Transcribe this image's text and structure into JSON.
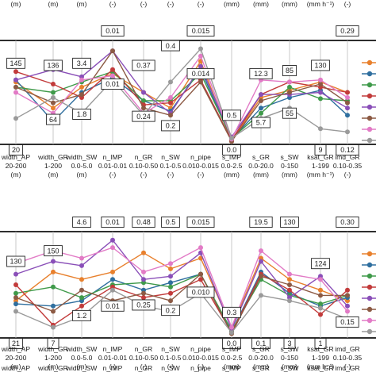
{
  "chart_data": [
    {
      "type": "line",
      "subtype": "parallel-coordinates",
      "title": "",
      "axes": [
        {
          "name": "width_AP",
          "range": "20-200",
          "unit": "(m)"
        },
        {
          "name": "width_GR",
          "range": "1-200",
          "unit": "(m)"
        },
        {
          "name": "width_SW",
          "range": "0.0-5.0",
          "unit": "(m)"
        },
        {
          "name": "n_IMP",
          "range": "0.01-0.01",
          "unit": "(-)"
        },
        {
          "name": "n_GR",
          "range": "0.10-0.50",
          "unit": "(-)"
        },
        {
          "name": "n_SW",
          "range": "0.1-0.5",
          "unit": "(-)"
        },
        {
          "name": "n_pipe",
          "range": "0.010-0.015",
          "unit": "(-)"
        },
        {
          "name": "s_IMP",
          "range": "0.0-2.5",
          "unit": "(mm)"
        },
        {
          "name": "s_GR",
          "range": "0.0-20.0",
          "unit": "(mm)"
        },
        {
          "name": "s_SW",
          "range": "0-150",
          "unit": "(mm)"
        },
        {
          "name": "ksat_GR",
          "range": "1-199",
          "unit": "(mm h⁻¹)"
        },
        {
          "name": "imd_GR",
          "range": "0.10-0.35",
          "unit": "(-)"
        }
      ],
      "labels_top": [
        "",
        "",
        "",
        "0.01",
        "",
        "",
        "0.015",
        "",
        "",
        "",
        "",
        "0.29"
      ],
      "labels_bottom": [
        "20",
        "",
        "",
        "",
        "",
        "",
        "",
        "0.0",
        "",
        "",
        "9",
        "0.12"
      ],
      "labels_mid": [
        {
          "axis": 0,
          "text": "145",
          "v": 0.78
        },
        {
          "axis": 1,
          "text": "136",
          "v": 0.76
        },
        {
          "axis": 1,
          "text": "64",
          "v": 0.24
        },
        {
          "axis": 2,
          "text": "3.4",
          "v": 0.78
        },
        {
          "axis": 2,
          "text": "1.8",
          "v": 0.29
        },
        {
          "axis": 3,
          "text": "0.01",
          "v": 0.58
        },
        {
          "axis": 4,
          "text": "0.37",
          "v": 0.76
        },
        {
          "axis": 4,
          "text": "0.24",
          "v": 0.27
        },
        {
          "axis": 5,
          "text": "0.4",
          "v": 0.95
        },
        {
          "axis": 5,
          "text": "0.2",
          "v": 0.18
        },
        {
          "axis": 6,
          "text": "0.014",
          "v": 0.68
        },
        {
          "axis": 7,
          "text": "0.5",
          "v": 0.28
        },
        {
          "axis": 8,
          "text": "12.3",
          "v": 0.68
        },
        {
          "axis": 8,
          "text": "5.7",
          "v": 0.21
        },
        {
          "axis": 9,
          "text": "85",
          "v": 0.71
        },
        {
          "axis": 9,
          "text": "55",
          "v": 0.3
        },
        {
          "axis": 10,
          "text": "130",
          "v": 0.76
        }
      ],
      "series": [
        {
          "color": "#e8802d",
          "values": [
            0.6,
            0.35,
            0.55,
            0.68,
            0.5,
            0.35,
            0.8,
            0.03,
            0.45,
            0.52,
            0.6,
            0.5
          ]
        },
        {
          "color": "#2f6f9f",
          "values": [
            0.62,
            0.22,
            0.5,
            0.64,
            0.42,
            0.32,
            0.72,
            0.05,
            0.35,
            0.45,
            0.52,
            0.28
          ]
        },
        {
          "color": "#3f9a4a",
          "values": [
            0.55,
            0.5,
            0.6,
            0.7,
            0.42,
            0.42,
            0.68,
            0.06,
            0.3,
            0.55,
            0.44,
            0.42
          ]
        },
        {
          "color": "#c23b3b",
          "values": [
            0.7,
            0.58,
            0.45,
            0.72,
            0.38,
            0.4,
            0.62,
            0.04,
            0.48,
            0.6,
            0.55,
            0.5
          ]
        },
        {
          "color": "#8a4fb8",
          "values": [
            0.62,
            0.72,
            0.65,
            0.9,
            0.5,
            0.3,
            0.75,
            0.07,
            0.48,
            0.48,
            0.5,
            0.35
          ]
        },
        {
          "color": "#8c5a44",
          "values": [
            0.55,
            0.4,
            0.48,
            0.9,
            0.35,
            0.28,
            0.6,
            0.03,
            0.42,
            0.5,
            0.58,
            0.4
          ]
        },
        {
          "color": "#e27bc6",
          "values": [
            0.5,
            0.3,
            0.62,
            0.66,
            0.3,
            0.45,
            0.85,
            0.05,
            0.62,
            0.6,
            0.62,
            0.45
          ]
        },
        {
          "color": "#9a9a9a",
          "values": [
            0.25,
            0.45,
            0.3,
            0.62,
            0.28,
            0.6,
            0.92,
            0.06,
            0.25,
            0.35,
            0.15,
            0.12
          ]
        }
      ]
    },
    {
      "type": "line",
      "subtype": "parallel-coordinates",
      "title": "",
      "axes": [
        {
          "name": "width_AP",
          "range": "20-200",
          "unit": "(m)"
        },
        {
          "name": "width_GR",
          "range": "1-200",
          "unit": "(m)"
        },
        {
          "name": "width_SW",
          "range": "0.0-5.0",
          "unit": "(m)"
        },
        {
          "name": "n_IMP",
          "range": "0.01-0.01",
          "unit": "(-)"
        },
        {
          "name": "n_GR",
          "range": "0.10-0.50",
          "unit": "(-)"
        },
        {
          "name": "n_SW",
          "range": "0.1-0.5",
          "unit": "(-)"
        },
        {
          "name": "n_pipe",
          "range": "0.010-0.015",
          "unit": "(-)"
        },
        {
          "name": "s_IMP",
          "range": "0.0-2.5",
          "unit": "(mm)"
        },
        {
          "name": "s_GR",
          "range": "0.0-20.0",
          "unit": "(mm)"
        },
        {
          "name": "s_SW",
          "range": "0-150",
          "unit": "(mm)"
        },
        {
          "name": "ksat_GR",
          "range": "1-199",
          "unit": "(mm h⁻¹)"
        },
        {
          "name": "imd_GR",
          "range": "0.10-0.35",
          "unit": "(-)"
        }
      ],
      "labels_top": [
        "",
        "",
        "4.6",
        "0.01",
        "0.48",
        "0.5",
        "0.015",
        "",
        "19.5",
        "130",
        "",
        "0.30"
      ],
      "labels_bottom": [
        "21",
        "7",
        "",
        "",
        "",
        "",
        "",
        "0.0",
        "0.1",
        "3",
        "1",
        ""
      ],
      "labels_mid": [
        {
          "axis": 0,
          "text": "130",
          "v": 0.72
        },
        {
          "axis": 1,
          "text": "150",
          "v": 0.82
        },
        {
          "axis": 2,
          "text": "1.2",
          "v": 0.21
        },
        {
          "axis": 3,
          "text": "0.01",
          "v": 0.3
        },
        {
          "axis": 4,
          "text": "0.25",
          "v": 0.31
        },
        {
          "axis": 5,
          "text": "0.2",
          "v": 0.26
        },
        {
          "axis": 6,
          "text": "0.010",
          "v": 0.43
        },
        {
          "axis": 7,
          "text": "0.3",
          "v": 0.24
        },
        {
          "axis": 10,
          "text": "124",
          "v": 0.7
        },
        {
          "axis": 11,
          "text": "0.15",
          "v": 0.15
        }
      ],
      "series": [
        {
          "color": "#e8802d",
          "values": [
            0.35,
            0.62,
            0.55,
            0.62,
            0.8,
            0.65,
            0.75,
            0.1,
            0.75,
            0.55,
            0.45,
            0.35
          ]
        },
        {
          "color": "#2f6f9f",
          "values": [
            0.32,
            0.3,
            0.35,
            0.55,
            0.45,
            0.52,
            0.6,
            0.06,
            0.62,
            0.42,
            0.3,
            0.38
          ]
        },
        {
          "color": "#3f9a4a",
          "values": [
            0.42,
            0.48,
            0.38,
            0.5,
            0.52,
            0.48,
            0.6,
            0.07,
            0.55,
            0.4,
            0.32,
            0.4
          ]
        },
        {
          "color": "#c23b3b",
          "values": [
            0.5,
            0.12,
            0.3,
            0.48,
            0.38,
            0.42,
            0.55,
            0.05,
            0.6,
            0.45,
            0.22,
            0.45
          ]
        },
        {
          "color": "#8a4fb8",
          "values": [
            0.6,
            0.72,
            0.68,
            0.92,
            0.55,
            0.58,
            0.8,
            0.08,
            0.72,
            0.38,
            0.58,
            0.3
          ]
        },
        {
          "color": "#8c5a44",
          "values": [
            0.38,
            0.25,
            0.45,
            0.35,
            0.42,
            0.35,
            0.6,
            0.04,
            0.58,
            0.5,
            0.4,
            0.4
          ]
        },
        {
          "color": "#e27bc6",
          "values": [
            0.7,
            0.82,
            0.75,
            0.85,
            0.62,
            0.7,
            0.85,
            0.1,
            0.82,
            0.6,
            0.55,
            0.25
          ]
        },
        {
          "color": "#9a9a9a",
          "values": [
            0.25,
            0.1,
            0.2,
            0.45,
            0.3,
            0.25,
            0.42,
            0.05,
            0.4,
            0.35,
            0.28,
            0.18
          ]
        }
      ]
    }
  ]
}
